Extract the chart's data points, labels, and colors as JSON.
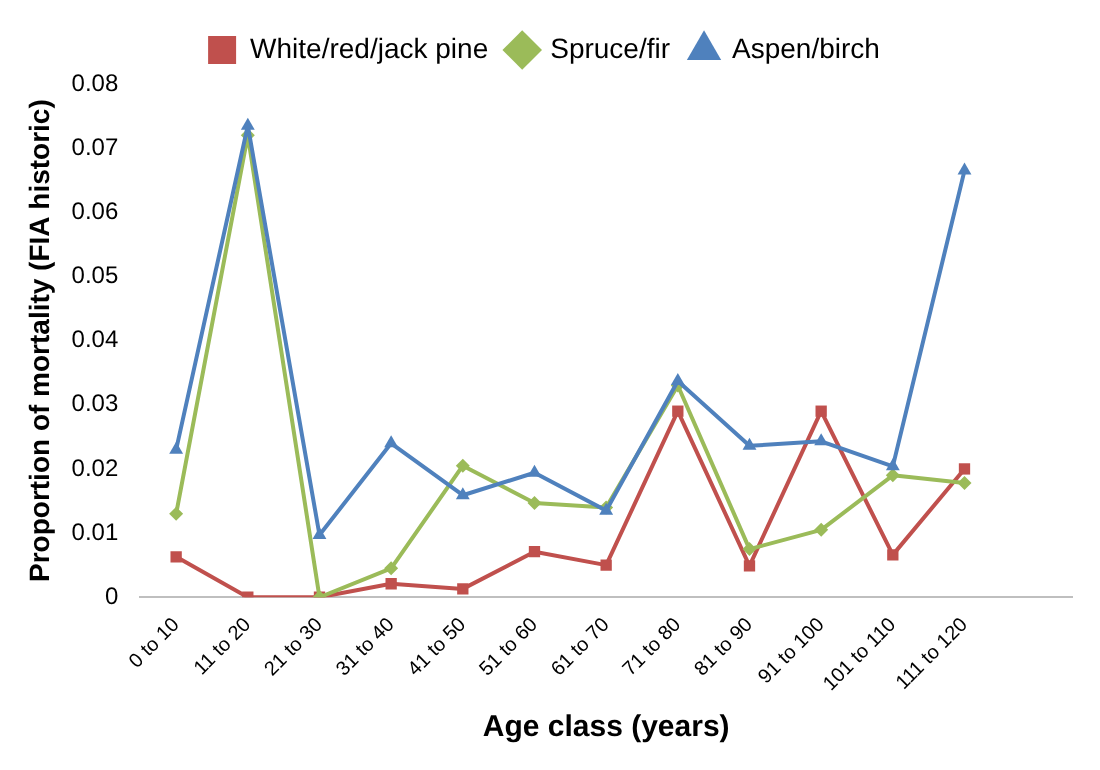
{
  "chart_data": {
    "type": "line",
    "ylabel": "Proportion of mortality (FIA historic)",
    "xlabel": "Age class (years)",
    "categories": [
      "0 to 10",
      "11 to 20",
      "21 to 30",
      "31 to 40",
      "41 to 50",
      "51 to 60",
      "61 to 70",
      "71 to 80",
      "81 to 90",
      "91 to 100",
      "101 to 110",
      "111 to 120",
      null
    ],
    "series": [
      {
        "name": "White/red/jack pine",
        "color": "#c0504d",
        "marker": "square",
        "values": [
          0.0063,
          0,
          0,
          0.0021,
          0.0013,
          0.0071,
          0.005,
          0.029,
          0.0049,
          0.029,
          0.0066,
          0.02,
          null
        ]
      },
      {
        "name": "Spruce/fir",
        "color": "#9bbb59",
        "marker": "diamond",
        "values": [
          0.013,
          0.072,
          0,
          0.0045,
          0.0205,
          0.0147,
          0.014,
          0.033,
          0.0075,
          0.0105,
          0.019,
          0.0178,
          null
        ]
      },
      {
        "name": "Aspen/birch",
        "color": "#4f81bd",
        "marker": "triangle",
        "values": [
          0.023,
          0.0735,
          0.0097,
          0.024,
          0.0159,
          0.0194,
          0.0135,
          0.0337,
          0.0236,
          0.0243,
          0.0204,
          0.0665,
          null
        ]
      }
    ],
    "ylim": [
      0,
      0.08
    ],
    "yticks": [
      0,
      0.01,
      0.02,
      0.03,
      0.04,
      0.05,
      0.06,
      0.07,
      0.08
    ],
    "grid": false,
    "legend": "top",
    "line_style": "solid"
  }
}
